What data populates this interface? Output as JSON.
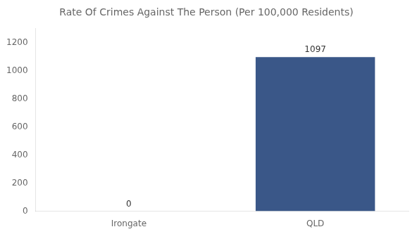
{
  "chart_data": {
    "type": "bar",
    "title": "Rate Of Crimes Against The Person (Per 100,000 Residents)",
    "categories": [
      "Irongate",
      "QLD"
    ],
    "values": [
      0,
      1097
    ],
    "color": "#3a5788",
    "ylim": [
      0,
      1300
    ],
    "yticks": [
      0,
      200,
      400,
      600,
      800,
      1000,
      1200
    ],
    "grid": false,
    "data_labels": true
  }
}
